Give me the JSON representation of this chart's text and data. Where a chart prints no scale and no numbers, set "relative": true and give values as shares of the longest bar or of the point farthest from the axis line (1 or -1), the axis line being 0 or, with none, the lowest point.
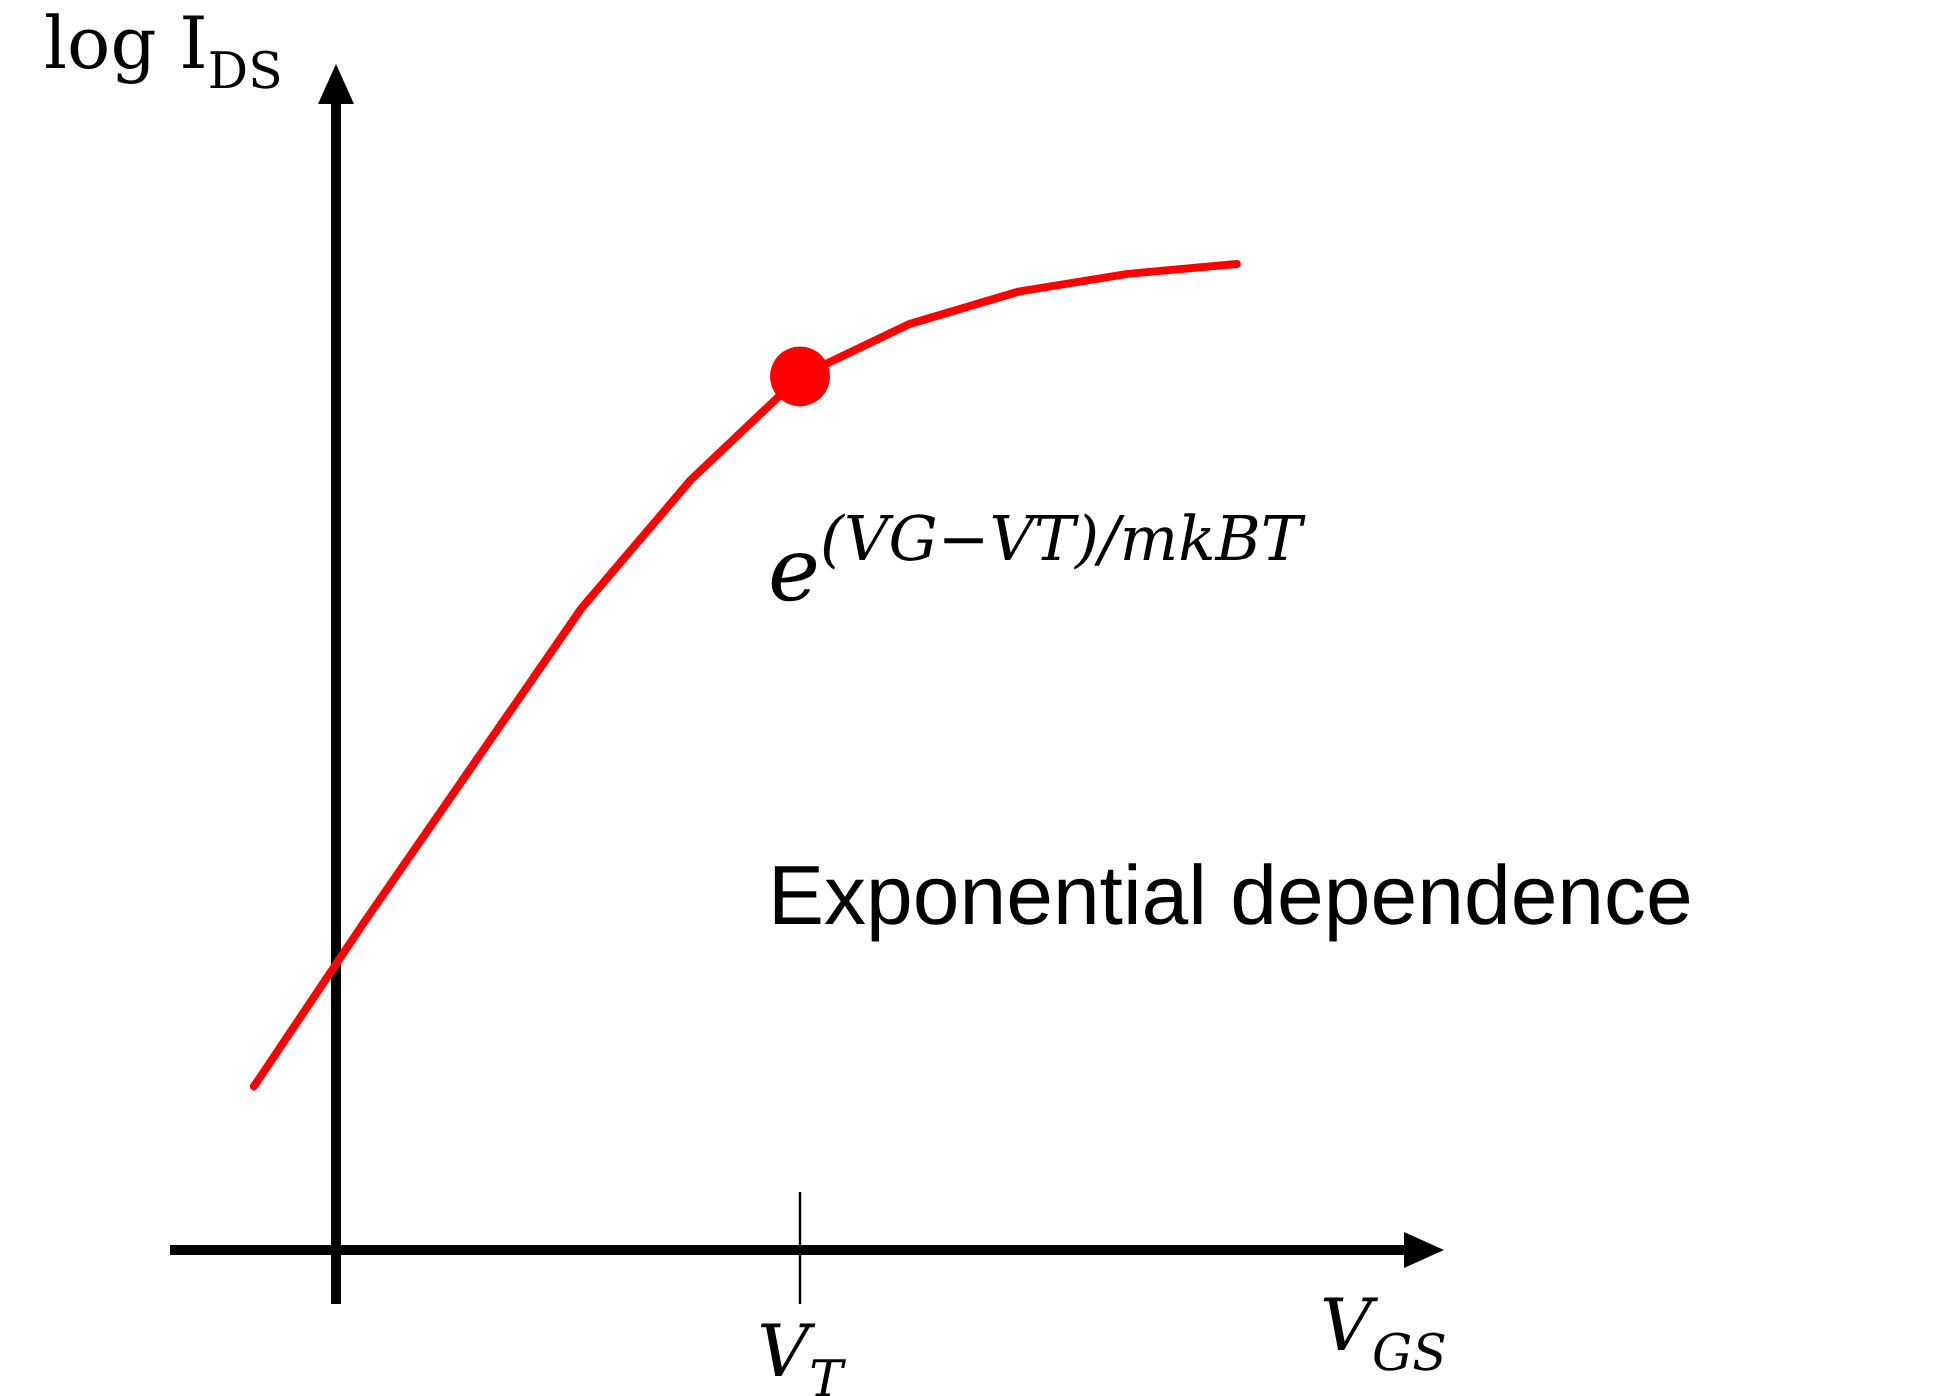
{
  "chart_data": {
    "type": "line",
    "relative": true,
    "ylabel": "log I$_{DS}$",
    "xlabel": "V$_{GS}$",
    "categories": [
      null,
      null,
      null,
      null,
      null,
      null,
      null,
      null,
      null,
      null
    ],
    "series": [
      {
        "color": "#ff0000",
        "values": [
          0.166,
          0.331,
          0.491,
          0.651,
          0.781,
          0.886,
          0.939,
          0.972,
          0.99,
          1
        ]
      }
    ],
    "annotations": [
      "V$_{T}$",
      "e$^{(VG−VT)/mkBT}$",
      "Exponential dependence"
    ]
  }
}
